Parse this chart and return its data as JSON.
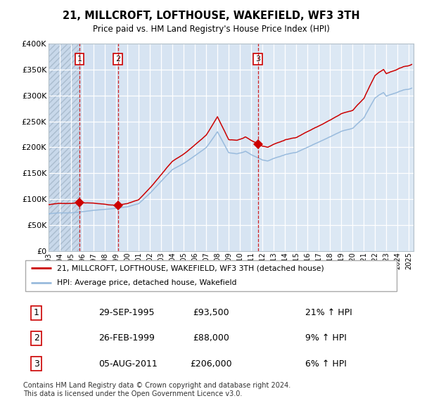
{
  "title": "21, MILLCROFT, LOFTHOUSE, WAKEFIELD, WF3 3TH",
  "subtitle": "Price paid vs. HM Land Registry's House Price Index (HPI)",
  "legend_label_red": "21, MILLCROFT, LOFTHOUSE, WAKEFIELD, WF3 3TH (detached house)",
  "legend_label_blue": "HPI: Average price, detached house, Wakefield",
  "transactions": [
    {
      "date": "1995-09-29",
      "price": 93500,
      "label": "1"
    },
    {
      "date": "1999-02-26",
      "price": 88000,
      "label": "2"
    },
    {
      "date": "2011-08-05",
      "price": 206000,
      "label": "3"
    }
  ],
  "transaction_table": [
    [
      "1",
      "29-SEP-1995",
      "£93,500",
      "21% ↑ HPI"
    ],
    [
      "2",
      "26-FEB-1999",
      "£88,000",
      "9% ↑ HPI"
    ],
    [
      "3",
      "05-AUG-2011",
      "£206,000",
      "6% ↑ HPI"
    ]
  ],
  "footer": "Contains HM Land Registry data © Crown copyright and database right 2024.\nThis data is licensed under the Open Government Licence v3.0.",
  "ylim": [
    0,
    400000
  ],
  "yticks": [
    0,
    50000,
    100000,
    150000,
    200000,
    250000,
    300000,
    350000,
    400000
  ],
  "ytick_labels": [
    "£0",
    "£50K",
    "£100K",
    "£150K",
    "£200K",
    "£250K",
    "£300K",
    "£350K",
    "£400K"
  ],
  "plot_bg_color": "#dce8f4",
  "red_line_color": "#cc0000",
  "blue_line_color": "#99bbdd",
  "dashed_line_color": "#cc0000",
  "marker_color": "#cc0000",
  "box_color": "#cc0000",
  "year_start": 1993,
  "year_end": 2025
}
